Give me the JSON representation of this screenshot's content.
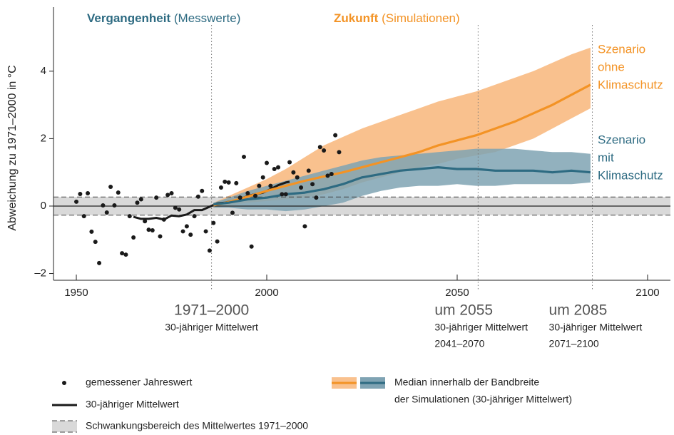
{
  "chart_data": {
    "type": "line",
    "headers": [
      {
        "bold": "Vergangenheit",
        "rest": "(Messwerte)",
        "color": "#2e6b82"
      },
      {
        "bold": "Zukunft",
        "rest": "(Simulationen)",
        "color": "#f39325"
      }
    ],
    "ylabel": "Abweichung zu 1971–2000 in °C",
    "xlim": [
      1944,
      2106
    ],
    "ylim": [
      -2.2,
      5.9
    ],
    "xticks": [
      1950,
      2000,
      2050,
      2100
    ],
    "yticks": [
      {
        "value": -2,
        "label": "–2"
      },
      0,
      2,
      4
    ],
    "reference_band": {
      "name": "Schwankungsbereich des Mittelwertes 1971–2000",
      "low": -0.27,
      "high": 0.27,
      "color": "#d9d9d9"
    },
    "periods": [
      {
        "x": 1985.5,
        "label": "1971–2000",
        "sublabel": [
          "30-jähriger Mittelwert"
        ]
      },
      {
        "x": 2055.5,
        "label": "um 2055",
        "sublabel": [
          "30-jähriger Mittelwert",
          "2041–2070"
        ]
      },
      {
        "x": 2085.5,
        "label": "um 2085",
        "sublabel": [
          "30-jähriger Mittelwert",
          "2071–2100"
        ]
      }
    ],
    "series": [
      {
        "name": "gemessener Jahreswert",
        "type": "scatter",
        "color": "#1a1a1a",
        "x": [
          1950,
          1951,
          1952,
          1953,
          1954,
          1955,
          1956,
          1957,
          1958,
          1959,
          1960,
          1961,
          1962,
          1963,
          1964,
          1965,
          1966,
          1967,
          1968,
          1969,
          1970,
          1971,
          1972,
          1973,
          1974,
          1975,
          1976,
          1977,
          1978,
          1979,
          1980,
          1981,
          1982,
          1983,
          1984,
          1985,
          1986,
          1987,
          1988,
          1989,
          1990,
          1991,
          1992,
          1993,
          1994,
          1995,
          1996,
          1997,
          1998,
          1999,
          2000,
          2001,
          2002,
          2003,
          2004,
          2005,
          2006,
          2007,
          2008,
          2009,
          2010,
          2011,
          2012,
          2013,
          2014,
          2015,
          2016,
          2017,
          2018,
          2019
        ],
        "values": [
          0.13,
          0.36,
          -0.3,
          0.38,
          -0.76,
          -1.06,
          -1.69,
          0.02,
          -0.19,
          0.57,
          0.02,
          0.4,
          -1.4,
          -1.44,
          -0.3,
          -0.93,
          0.1,
          0.2,
          -0.45,
          -0.7,
          -0.72,
          0.25,
          -0.9,
          -0.4,
          0.33,
          0.38,
          -0.05,
          -0.1,
          -0.75,
          -0.6,
          -0.85,
          -0.3,
          0.28,
          0.45,
          -0.75,
          -1.32,
          -0.5,
          -1.05,
          0.55,
          0.72,
          0.7,
          -0.2,
          0.68,
          0.25,
          1.46,
          0.38,
          -1.2,
          0.3,
          0.6,
          0.85,
          1.28,
          0.6,
          1.1,
          1.15,
          0.35,
          0.35,
          1.3,
          1.0,
          0.85,
          0.55,
          -0.6,
          1.05,
          0.65,
          0.25,
          1.75,
          1.65,
          0.9,
          0.95,
          2.1,
          1.6
        ]
      },
      {
        "name": "30-jähriger Mittelwert",
        "type": "line",
        "color": "#1a1a1a",
        "x": [
          1965,
          1967,
          1969,
          1971,
          1973,
          1975,
          1977,
          1979,
          1981,
          1983,
          1985,
          1987,
          1989,
          1991,
          1993,
          1995,
          1997,
          1999,
          2001,
          2003,
          2005,
          2006
        ],
        "values": [
          -0.32,
          -0.38,
          -0.38,
          -0.35,
          -0.4,
          -0.28,
          -0.3,
          -0.25,
          -0.12,
          -0.12,
          -0.02,
          0.08,
          0.1,
          0.15,
          0.2,
          0.3,
          0.35,
          0.4,
          0.5,
          0.62,
          0.7,
          0.72
        ]
      },
      {
        "label": [
          "Szenario",
          "ohne",
          "Klimaschutz"
        ],
        "type": "band",
        "color": "#f39325",
        "band_color": "#f9c18e",
        "x": [
          1986,
          1990,
          1995,
          2000,
          2005,
          2010,
          2015,
          2020,
          2025,
          2030,
          2035,
          2040,
          2045,
          2050,
          2055,
          2060,
          2065,
          2070,
          2075,
          2080,
          2085
        ],
        "values": [
          0.02,
          0.12,
          0.28,
          0.45,
          0.6,
          0.75,
          0.88,
          1.0,
          1.15,
          1.3,
          1.45,
          1.6,
          1.8,
          1.95,
          2.1,
          2.3,
          2.5,
          2.75,
          3.0,
          3.3,
          3.6
        ],
        "high": [
          0.1,
          0.3,
          0.55,
          0.8,
          1.1,
          1.45,
          1.8,
          2.05,
          2.3,
          2.5,
          2.7,
          2.9,
          3.1,
          3.25,
          3.4,
          3.6,
          3.8,
          4.0,
          4.25,
          4.5,
          4.7
        ],
        "low": [
          -0.05,
          0.02,
          0.1,
          0.15,
          0.2,
          0.25,
          0.35,
          0.5,
          0.7,
          0.85,
          1.0,
          1.15,
          1.25,
          1.4,
          1.5,
          1.6,
          1.8,
          2.0,
          2.3,
          2.6,
          2.9
        ]
      },
      {
        "label": [
          "Szenario",
          "mit",
          "Klimaschutz"
        ],
        "type": "band",
        "color": "#2e6b82",
        "band_color": "#7fa3b3",
        "x": [
          1986,
          1990,
          1995,
          2000,
          2005,
          2010,
          2015,
          2020,
          2025,
          2030,
          2035,
          2040,
          2045,
          2050,
          2055,
          2060,
          2065,
          2070,
          2075,
          2080,
          2085
        ],
        "values": [
          0.05,
          0.1,
          0.2,
          0.25,
          0.35,
          0.4,
          0.5,
          0.65,
          0.85,
          0.95,
          1.05,
          1.1,
          1.15,
          1.1,
          1.1,
          1.05,
          1.05,
          1.05,
          1.0,
          1.05,
          1.0
        ],
        "high": [
          0.1,
          0.25,
          0.45,
          0.6,
          0.75,
          0.9,
          1.05,
          1.2,
          1.35,
          1.45,
          1.5,
          1.55,
          1.6,
          1.65,
          1.7,
          1.7,
          1.7,
          1.65,
          1.6,
          1.6,
          1.55
        ],
        "low": [
          -0.05,
          -0.05,
          -0.1,
          -0.1,
          -0.15,
          -0.1,
          0.0,
          0.1,
          0.3,
          0.45,
          0.55,
          0.6,
          0.6,
          0.65,
          0.6,
          0.6,
          0.65,
          0.65,
          0.65,
          0.65,
          0.7
        ]
      }
    ],
    "median_legend": [
      "Median innerhalb der Bandbreite",
      "der Simulationen (30-jähriger Mittelwert)"
    ]
  }
}
